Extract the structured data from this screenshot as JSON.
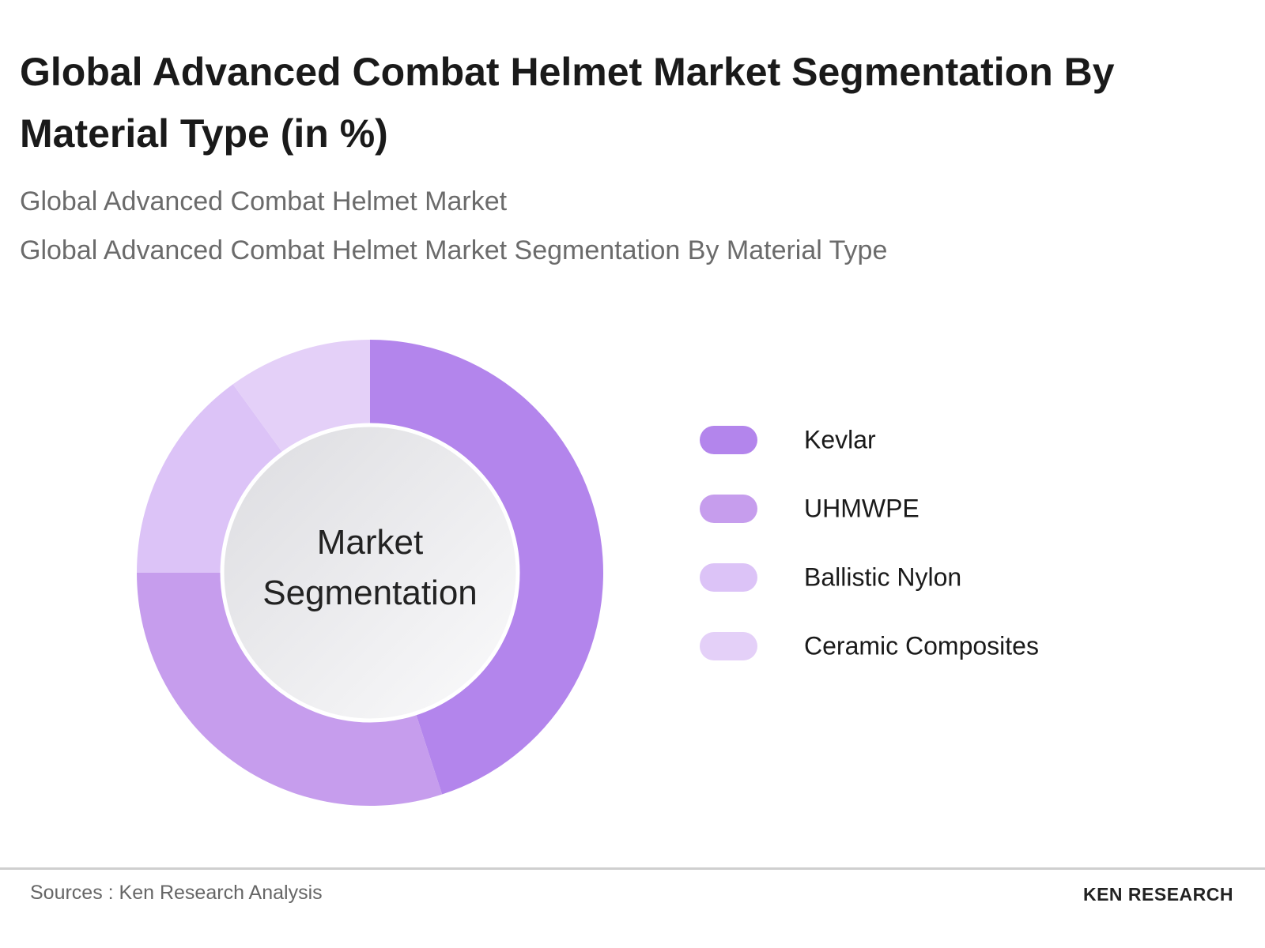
{
  "chart_data": {
    "type": "donut",
    "title": "Global Advanced Combat Helmet Market Segmentation By Material Type (in %)",
    "subtitle_lines": [
      "Global Advanced Combat Helmet Market",
      "Global Advanced Combat Helmet Market Segmentation By Material Type"
    ],
    "center_label": "Market Segmentation",
    "categories": [
      "Kevlar",
      "UHMWPE",
      "Ballistic Nylon",
      "Ceramic Composites"
    ],
    "values": [
      45,
      30,
      15,
      10
    ],
    "colors": [
      "#b385ec",
      "#c69ded",
      "#dcc3f7",
      "#e4d0f8"
    ],
    "legend": "right"
  },
  "footer": {
    "source": "Sources : Ken Research Analysis",
    "logo": "KEN RESEARCH"
  }
}
